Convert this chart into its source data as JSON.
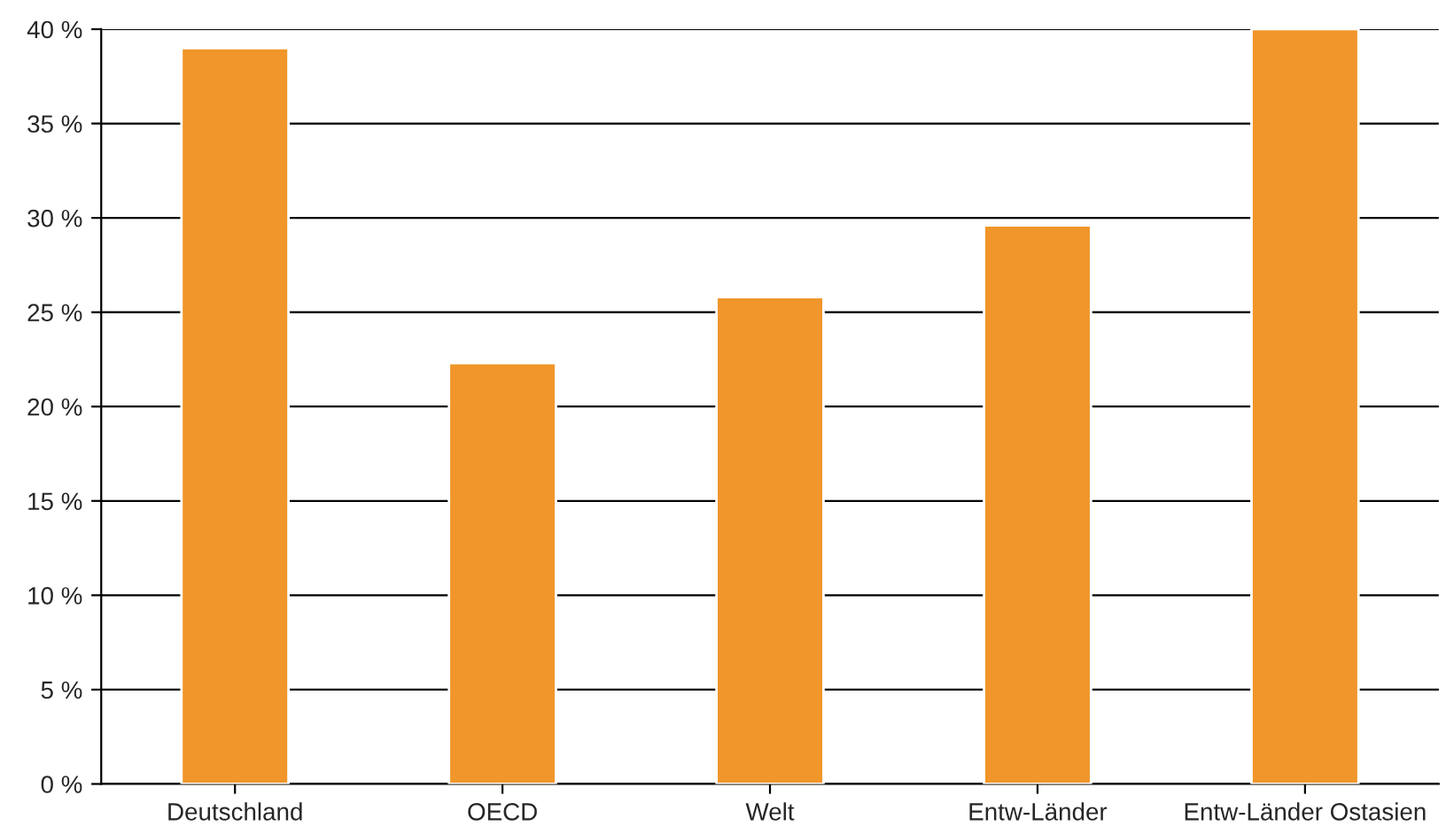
{
  "chart_data": {
    "type": "bar",
    "categories": [
      "Deutschland",
      "OECD",
      "Welt",
      "Entw-Länder",
      "Entw-Länder Ostasien"
    ],
    "values": [
      39,
      22.3,
      25.8,
      29.6,
      40
    ],
    "color": "#f0962a",
    "ylim": [
      0,
      40
    ],
    "yticks": [
      {
        "value": 0,
        "label": "0 %"
      },
      {
        "value": 5,
        "label": "5 %"
      },
      {
        "value": 10,
        "label": "10 %"
      },
      {
        "value": 15,
        "label": "15 %"
      },
      {
        "value": 20,
        "label": "20 %"
      },
      {
        "value": 25,
        "label": "25 %"
      },
      {
        "value": 30,
        "label": "30 %"
      },
      {
        "value": 35,
        "label": "35 %"
      },
      {
        "value": 40,
        "label": "40 %"
      }
    ],
    "grid": "y"
  }
}
